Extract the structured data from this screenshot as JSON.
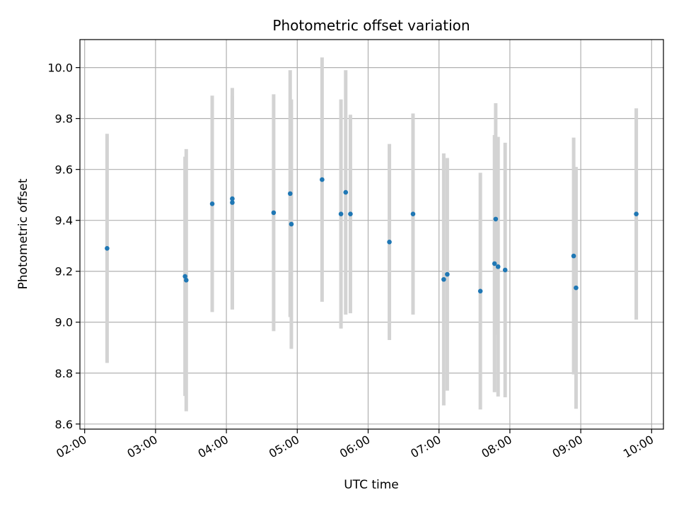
{
  "chart_data": {
    "type": "scatter",
    "title": "Photometric offset variation",
    "xlabel": "UTC time",
    "ylabel": "Photometric offset",
    "xlim": [
      "01:56",
      "10:10"
    ],
    "ylim": [
      8.58,
      10.11
    ],
    "x_ticks": [
      "02:00",
      "03:00",
      "04:00",
      "05:00",
      "06:00",
      "07:00",
      "08:00",
      "09:00",
      "10:00"
    ],
    "y_ticks": [
      8.6,
      8.8,
      9.0,
      9.2,
      9.4,
      9.6,
      9.8,
      10.0
    ],
    "grid": true,
    "marker_color": "#1f77b4",
    "errorbar_color": "#d3d3d3",
    "points": [
      {
        "time": "02:19",
        "y": 9.29,
        "yerr": 0.45
      },
      {
        "time": "03:25",
        "y": 9.18,
        "yerr": 0.47
      },
      {
        "time": "03:26",
        "y": 9.165,
        "yerr": 0.515
      },
      {
        "time": "03:48",
        "y": 9.465,
        "yerr": 0.425
      },
      {
        "time": "04:05",
        "y": 9.485,
        "yerr": 0.435
      },
      {
        "time": "04:05",
        "y": 9.47,
        "yerr": 0.42
      },
      {
        "time": "04:40",
        "y": 9.43,
        "yerr": 0.465
      },
      {
        "time": "04:54",
        "y": 9.505,
        "yerr": 0.485
      },
      {
        "time": "04:55",
        "y": 9.385,
        "yerr": 0.49
      },
      {
        "time": "05:21",
        "y": 9.56,
        "yerr": 0.48
      },
      {
        "time": "05:37",
        "y": 9.425,
        "yerr": 0.45
      },
      {
        "time": "05:41",
        "y": 9.51,
        "yerr": 0.48
      },
      {
        "time": "05:45",
        "y": 9.425,
        "yerr": 0.39
      },
      {
        "time": "06:18",
        "y": 9.315,
        "yerr": 0.385
      },
      {
        "time": "06:38",
        "y": 9.425,
        "yerr": 0.395
      },
      {
        "time": "07:04",
        "y": 9.168,
        "yerr": 0.495
      },
      {
        "time": "07:07",
        "y": 9.188,
        "yerr": 0.457
      },
      {
        "time": "07:35",
        "y": 9.122,
        "yerr": 0.465
      },
      {
        "time": "07:47",
        "y": 9.23,
        "yerr": 0.505
      },
      {
        "time": "07:48",
        "y": 9.405,
        "yerr": 0.455
      },
      {
        "time": "07:50",
        "y": 9.218,
        "yerr": 0.51
      },
      {
        "time": "07:56",
        "y": 9.205,
        "yerr": 0.5
      },
      {
        "time": "08:54",
        "y": 9.26,
        "yerr": 0.465
      },
      {
        "time": "08:56",
        "y": 9.135,
        "yerr": 0.475
      },
      {
        "time": "09:47",
        "y": 9.425,
        "yerr": 0.415
      }
    ]
  }
}
